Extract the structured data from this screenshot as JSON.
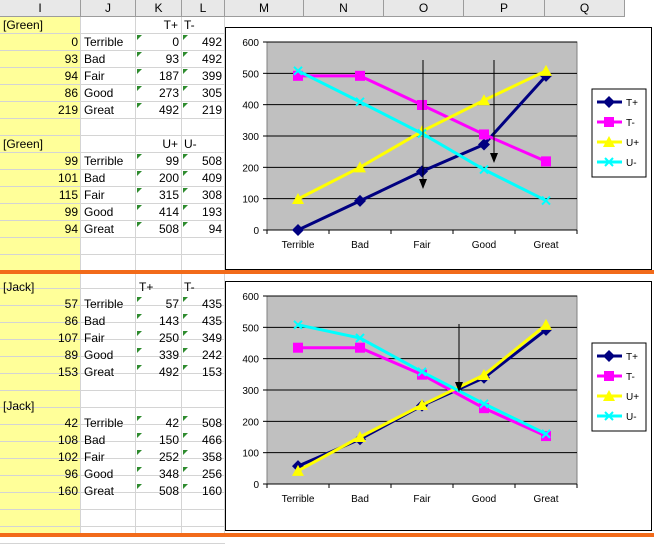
{
  "columns": [
    "I",
    "J",
    "K",
    "L",
    "M",
    "N",
    "O",
    "P",
    "Q"
  ],
  "colors": {
    "separator": "#f26b1a",
    "yellow_fill": "#ffff99",
    "plot_bg": "#c0c0c0",
    "tplus": "#000080",
    "tminus": "#ff00ff",
    "uplus": "#ffff00",
    "uminus": "#00ffff"
  },
  "top": {
    "block1": {
      "name": "[Green]",
      "h1": "T+",
      "h2": "T-",
      "rows": [
        {
          "count": "0",
          "label": "Terrible",
          "a": "0",
          "b": "492"
        },
        {
          "count": "93",
          "label": "Bad",
          "a": "93",
          "b": "492"
        },
        {
          "count": "94",
          "label": "Fair",
          "a": "187",
          "b": "399"
        },
        {
          "count": "86",
          "label": "Good",
          "a": "273",
          "b": "305"
        },
        {
          "count": "219",
          "label": "Great",
          "a": "492",
          "b": "219"
        }
      ]
    },
    "block2": {
      "name": "[Green]",
      "h1": "U+",
      "h2": "U-",
      "rows": [
        {
          "count": "99",
          "label": "Terrible",
          "a": "99",
          "b": "508"
        },
        {
          "count": "101",
          "label": "Bad",
          "a": "200",
          "b": "409"
        },
        {
          "count": "115",
          "label": "Fair",
          "a": "315",
          "b": "308"
        },
        {
          "count": "99",
          "label": "Good",
          "a": "414",
          "b": "193"
        },
        {
          "count": "94",
          "label": "Great",
          "a": "508",
          "b": "94"
        }
      ]
    }
  },
  "bottom": {
    "block1": {
      "name": "[Jack]",
      "h1": "T+",
      "h2": "T-",
      "rows": [
        {
          "count": "57",
          "label": "Terrible",
          "a": "57",
          "b": "435"
        },
        {
          "count": "86",
          "label": "Bad",
          "a": "143",
          "b": "435"
        },
        {
          "count": "107",
          "label": "Fair",
          "a": "250",
          "b": "349"
        },
        {
          "count": "89",
          "label": "Good",
          "a": "339",
          "b": "242"
        },
        {
          "count": "153",
          "label": "Great",
          "a": "492",
          "b": "153"
        }
      ]
    },
    "block2": {
      "name": "[Jack]",
      "h1": "",
      "h2": "",
      "rows": [
        {
          "count": "42",
          "label": "Terrible",
          "a": "42",
          "b": "508"
        },
        {
          "count": "108",
          "label": "Bad",
          "a": "150",
          "b": "466"
        },
        {
          "count": "102",
          "label": "Fair",
          "a": "252",
          "b": "358"
        },
        {
          "count": "96",
          "label": "Good",
          "a": "348",
          "b": "256"
        },
        {
          "count": "160",
          "label": "Great",
          "a": "508",
          "b": "160"
        }
      ]
    }
  },
  "chart_data": [
    {
      "type": "line",
      "categories": [
        "Terrible",
        "Bad",
        "Fair",
        "Good",
        "Great"
      ],
      "ylim": [
        0,
        600
      ],
      "yticks": [
        "0",
        "100",
        "200",
        "300",
        "400",
        "500",
        "600"
      ],
      "grid": true,
      "legend": "right",
      "series": [
        {
          "name": "T+",
          "values": [
            0,
            93,
            187,
            273,
            492
          ],
          "marker": "diamond",
          "color": "#000080"
        },
        {
          "name": "T-",
          "values": [
            492,
            492,
            399,
            305,
            219
          ],
          "marker": "square",
          "color": "#ff00ff"
        },
        {
          "name": "U+",
          "values": [
            99,
            200,
            315,
            414,
            508
          ],
          "marker": "triangle",
          "color": "#ffff00"
        },
        {
          "name": "U-",
          "values": [
            508,
            409,
            308,
            193,
            94
          ],
          "marker": "x",
          "color": "#00ffff"
        }
      ]
    },
    {
      "type": "line",
      "categories": [
        "Terrible",
        "Bad",
        "Fair",
        "Good",
        "Great"
      ],
      "ylim": [
        0,
        600
      ],
      "yticks": [
        "0",
        "100",
        "200",
        "300",
        "400",
        "500",
        "600"
      ],
      "grid": true,
      "legend": "right",
      "series": [
        {
          "name": "T+",
          "values": [
            57,
            143,
            250,
            339,
            492
          ],
          "marker": "diamond",
          "color": "#000080"
        },
        {
          "name": "T-",
          "values": [
            435,
            435,
            349,
            242,
            153
          ],
          "marker": "square",
          "color": "#ff00ff"
        },
        {
          "name": "U+",
          "values": [
            42,
            150,
            252,
            348,
            508
          ],
          "marker": "triangle",
          "color": "#ffff00"
        },
        {
          "name": "U-",
          "values": [
            508,
            466,
            358,
            256,
            160
          ],
          "marker": "x",
          "color": "#00ffff"
        }
      ]
    }
  ]
}
